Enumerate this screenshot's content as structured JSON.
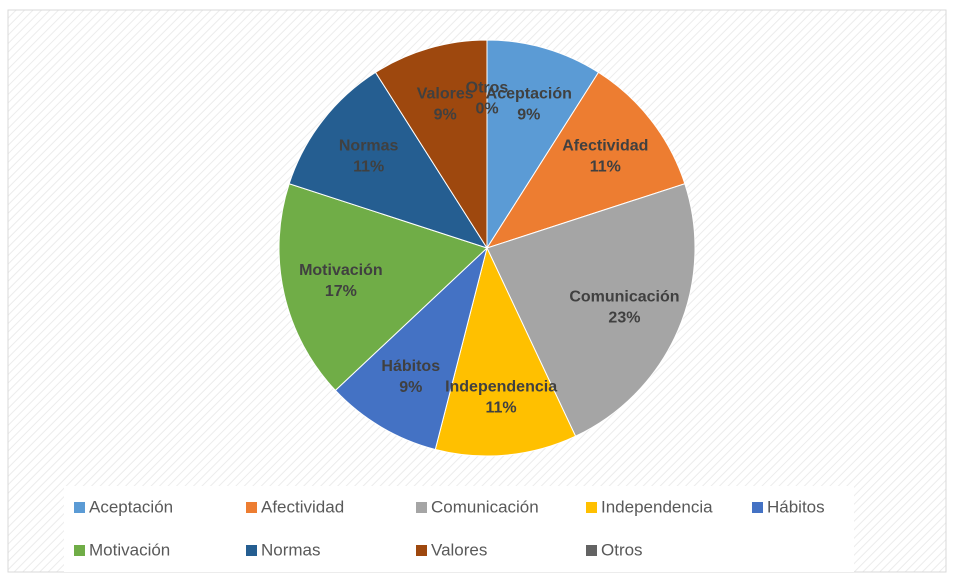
{
  "chart_data": {
    "type": "pie",
    "categories": [
      "Aceptación",
      "Afectividad",
      "Comunicación",
      "Independencia",
      "Hábitos",
      "Motivación",
      "Normas",
      "Valores",
      "Otros"
    ],
    "values": [
      9,
      11,
      23,
      11,
      9,
      17,
      11,
      9,
      0
    ],
    "value_labels": [
      "9%",
      "11%",
      "23%",
      "11%",
      "9%",
      "17%",
      "11%",
      "9%",
      "0%"
    ],
    "colors": [
      "#5b9bd5",
      "#ed7d31",
      "#a5a5a5",
      "#ffc000",
      "#4472c4",
      "#70ad47",
      "#255e91",
      "#9e480e",
      "#636363"
    ],
    "legend": "bottom"
  }
}
